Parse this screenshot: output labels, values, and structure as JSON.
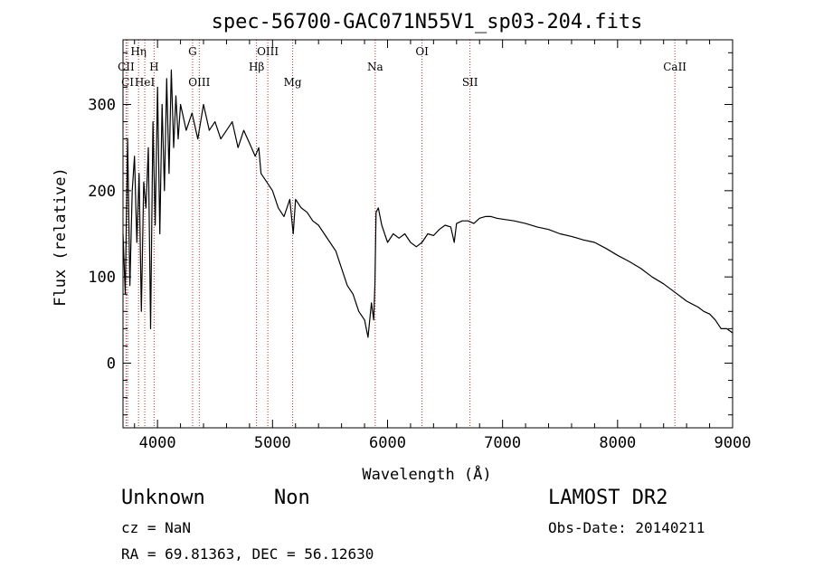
{
  "chart_data": {
    "type": "line",
    "title": "spec-56700-GAC071N55V1_sp03-204.fits",
    "xlabel": "Wavelength (Å)",
    "ylabel": "Flux (relative)",
    "xlim": [
      3700,
      9000
    ],
    "ylim": [
      -75,
      375
    ],
    "x_ticks": [
      4000,
      5000,
      6000,
      7000,
      8000,
      9000
    ],
    "y_ticks": [
      0,
      100,
      200,
      300
    ],
    "grid": false,
    "series": [
      {
        "x": [
          3700,
          3720,
          3740,
          3760,
          3780,
          3800,
          3820,
          3840,
          3860,
          3880,
          3900,
          3920,
          3940,
          3960,
          3980,
          4000,
          4020,
          4040,
          4060,
          4080,
          4100,
          4120,
          4140,
          4160,
          4180,
          4200,
          4250,
          4300,
          4350,
          4400,
          4450,
          4500,
          4550,
          4600,
          4650,
          4700,
          4750,
          4800,
          4850,
          4880,
          4900,
          4950,
          5000,
          5050,
          5100,
          5150,
          5180,
          5200,
          5250,
          5300,
          5350,
          5400,
          5450,
          5500,
          5550,
          5600,
          5650,
          5700,
          5750,
          5800,
          5830,
          5860,
          5880,
          5890,
          5900,
          5920,
          5950,
          6000,
          6050,
          6100,
          6150,
          6200,
          6250,
          6300,
          6350,
          6400,
          6450,
          6500,
          6550,
          6580,
          6600,
          6650,
          6700,
          6750,
          6800,
          6850,
          6900,
          6950,
          7000,
          7100,
          7200,
          7300,
          7400,
          7500,
          7600,
          7700,
          7800,
          7900,
          8000,
          8100,
          8200,
          8300,
          8400,
          8500,
          8600,
          8700,
          8750,
          8800,
          8850,
          8900,
          8950,
          9000
        ],
        "values": [
          150,
          80,
          260,
          90,
          200,
          240,
          140,
          220,
          60,
          210,
          180,
          250,
          40,
          280,
          160,
          320,
          150,
          300,
          200,
          330,
          220,
          340,
          250,
          310,
          260,
          300,
          270,
          290,
          260,
          300,
          270,
          280,
          260,
          270,
          280,
          250,
          270,
          255,
          240,
          250,
          220,
          210,
          200,
          180,
          170,
          190,
          150,
          190,
          180,
          175,
          165,
          160,
          150,
          140,
          130,
          110,
          90,
          80,
          60,
          50,
          30,
          70,
          50,
          90,
          175,
          180,
          160,
          140,
          150,
          145,
          150,
          140,
          135,
          140,
          150,
          148,
          155,
          160,
          158,
          140,
          162,
          165,
          165,
          162,
          168,
          170,
          170,
          168,
          167,
          165,
          162,
          158,
          155,
          150,
          147,
          143,
          140,
          133,
          125,
          118,
          110,
          100,
          92,
          82,
          72,
          65,
          60,
          57,
          50,
          40,
          40,
          35
        ]
      }
    ],
    "lines": [
      {
        "label": "CII",
        "x": 3727,
        "row": 2
      },
      {
        "label": "CI",
        "x": 3740,
        "row": 3
      },
      {
        "label": "Hη",
        "x": 3835,
        "row": 1
      },
      {
        "label": "HeI",
        "x": 3889,
        "row": 3
      },
      {
        "label": "H",
        "x": 3970,
        "row": 2
      },
      {
        "label": "G",
        "x": 4305,
        "row": 1
      },
      {
        "label": "OIII",
        "x": 4363,
        "row": 3
      },
      {
        "label": "Hβ",
        "x": 4861,
        "row": 2
      },
      {
        "label": "OIII",
        "x": 4959,
        "row": 1
      },
      {
        "label": "Mg",
        "x": 5175,
        "row": 3
      },
      {
        "label": "Na",
        "x": 5893,
        "row": 2
      },
      {
        "label": "OI",
        "x": 6300,
        "row": 1
      },
      {
        "label": "SII",
        "x": 6717,
        "row": 3
      },
      {
        "label": "CaII",
        "x": 8498,
        "row": 2
      }
    ]
  },
  "info": {
    "class": "Unknown",
    "subclass": "Non",
    "survey": "LAMOST DR2",
    "cz": "cz = NaN",
    "obs_date": "Obs-Date: 20140211",
    "coords": "RA =  69.81363, DEC =  56.12630"
  }
}
